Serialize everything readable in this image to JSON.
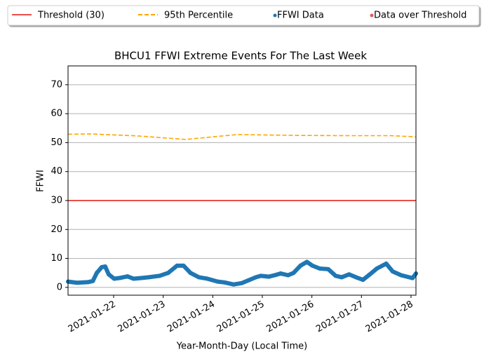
{
  "chart_data": {
    "type": "scatter",
    "title": "BHCU1 FFWI Extreme Events For The Last Week",
    "xlabel": "Year-Month-Day (Local Time)",
    "ylabel": "FFWI",
    "xlim": [
      21.08,
      28.1
    ],
    "ylim": [
      -2.7,
      76.5
    ],
    "xticks": [
      {
        "value": 22,
        "label": "2021-01-22"
      },
      {
        "value": 23,
        "label": "2021-01-23"
      },
      {
        "value": 24,
        "label": "2021-01-24"
      },
      {
        "value": 25,
        "label": "2021-01-25"
      },
      {
        "value": 26,
        "label": "2021-01-26"
      },
      {
        "value": 27,
        "label": "2021-01-27"
      },
      {
        "value": 28,
        "label": "2021-01-28"
      }
    ],
    "yticks": [
      0,
      10,
      20,
      30,
      40,
      50,
      60,
      70
    ],
    "grid": "y",
    "legend_loc": "upper center",
    "series": [
      {
        "name": "Threshold (30)",
        "kind": "hline",
        "color": "#e8504a",
        "value": 30
      },
      {
        "name": "95th Percentile",
        "kind": "dashed",
        "color": "#ffa500",
        "x": [
          21.08,
          21.55,
          22.5,
          23.45,
          24.5,
          25.6,
          26.8,
          27.6,
          28.1
        ],
        "values": [
          52.9,
          53,
          52.3,
          51.1,
          52.8,
          52.5,
          52.4,
          52.4,
          52
        ]
      },
      {
        "name": "FFWI Data",
        "kind": "scatter",
        "color": "#1f77b4",
        "x": [
          21.08,
          21.26,
          21.48,
          21.58,
          21.66,
          21.76,
          21.83,
          21.9,
          22.01,
          22.14,
          22.28,
          22.4,
          22.54,
          22.71,
          22.93,
          23.1,
          23.28,
          23.41,
          23.55,
          23.72,
          23.89,
          24.1,
          24.24,
          24.42,
          24.59,
          24.73,
          24.87,
          24.97,
          25.13,
          25.27,
          25.37,
          25.52,
          25.63,
          25.77,
          25.9,
          26.01,
          26.16,
          26.33,
          26.48,
          26.6,
          26.75,
          26.89,
          27.03,
          27.17,
          27.31,
          27.5,
          27.63,
          27.8,
          28.03,
          28.1
        ],
        "values": [
          2,
          1.6,
          1.8,
          2.2,
          5,
          7,
          7.2,
          4.5,
          3,
          3.3,
          3.8,
          3,
          3.2,
          3.5,
          4,
          5,
          7.5,
          7.5,
          5,
          3.5,
          3,
          2,
          1.7,
          1,
          1.5,
          2.5,
          3.5,
          4,
          3.7,
          4.3,
          4.8,
          4.2,
          5,
          7.5,
          8.8,
          7.5,
          6.5,
          6.3,
          4,
          3.5,
          4.5,
          3.5,
          2.6,
          4.5,
          6.5,
          8.2,
          5.5,
          4.2,
          3.2,
          4.8
        ]
      },
      {
        "name": "Data over Threshold",
        "kind": "scatter",
        "color": "#e05c5c",
        "x": [],
        "values": []
      }
    ]
  }
}
